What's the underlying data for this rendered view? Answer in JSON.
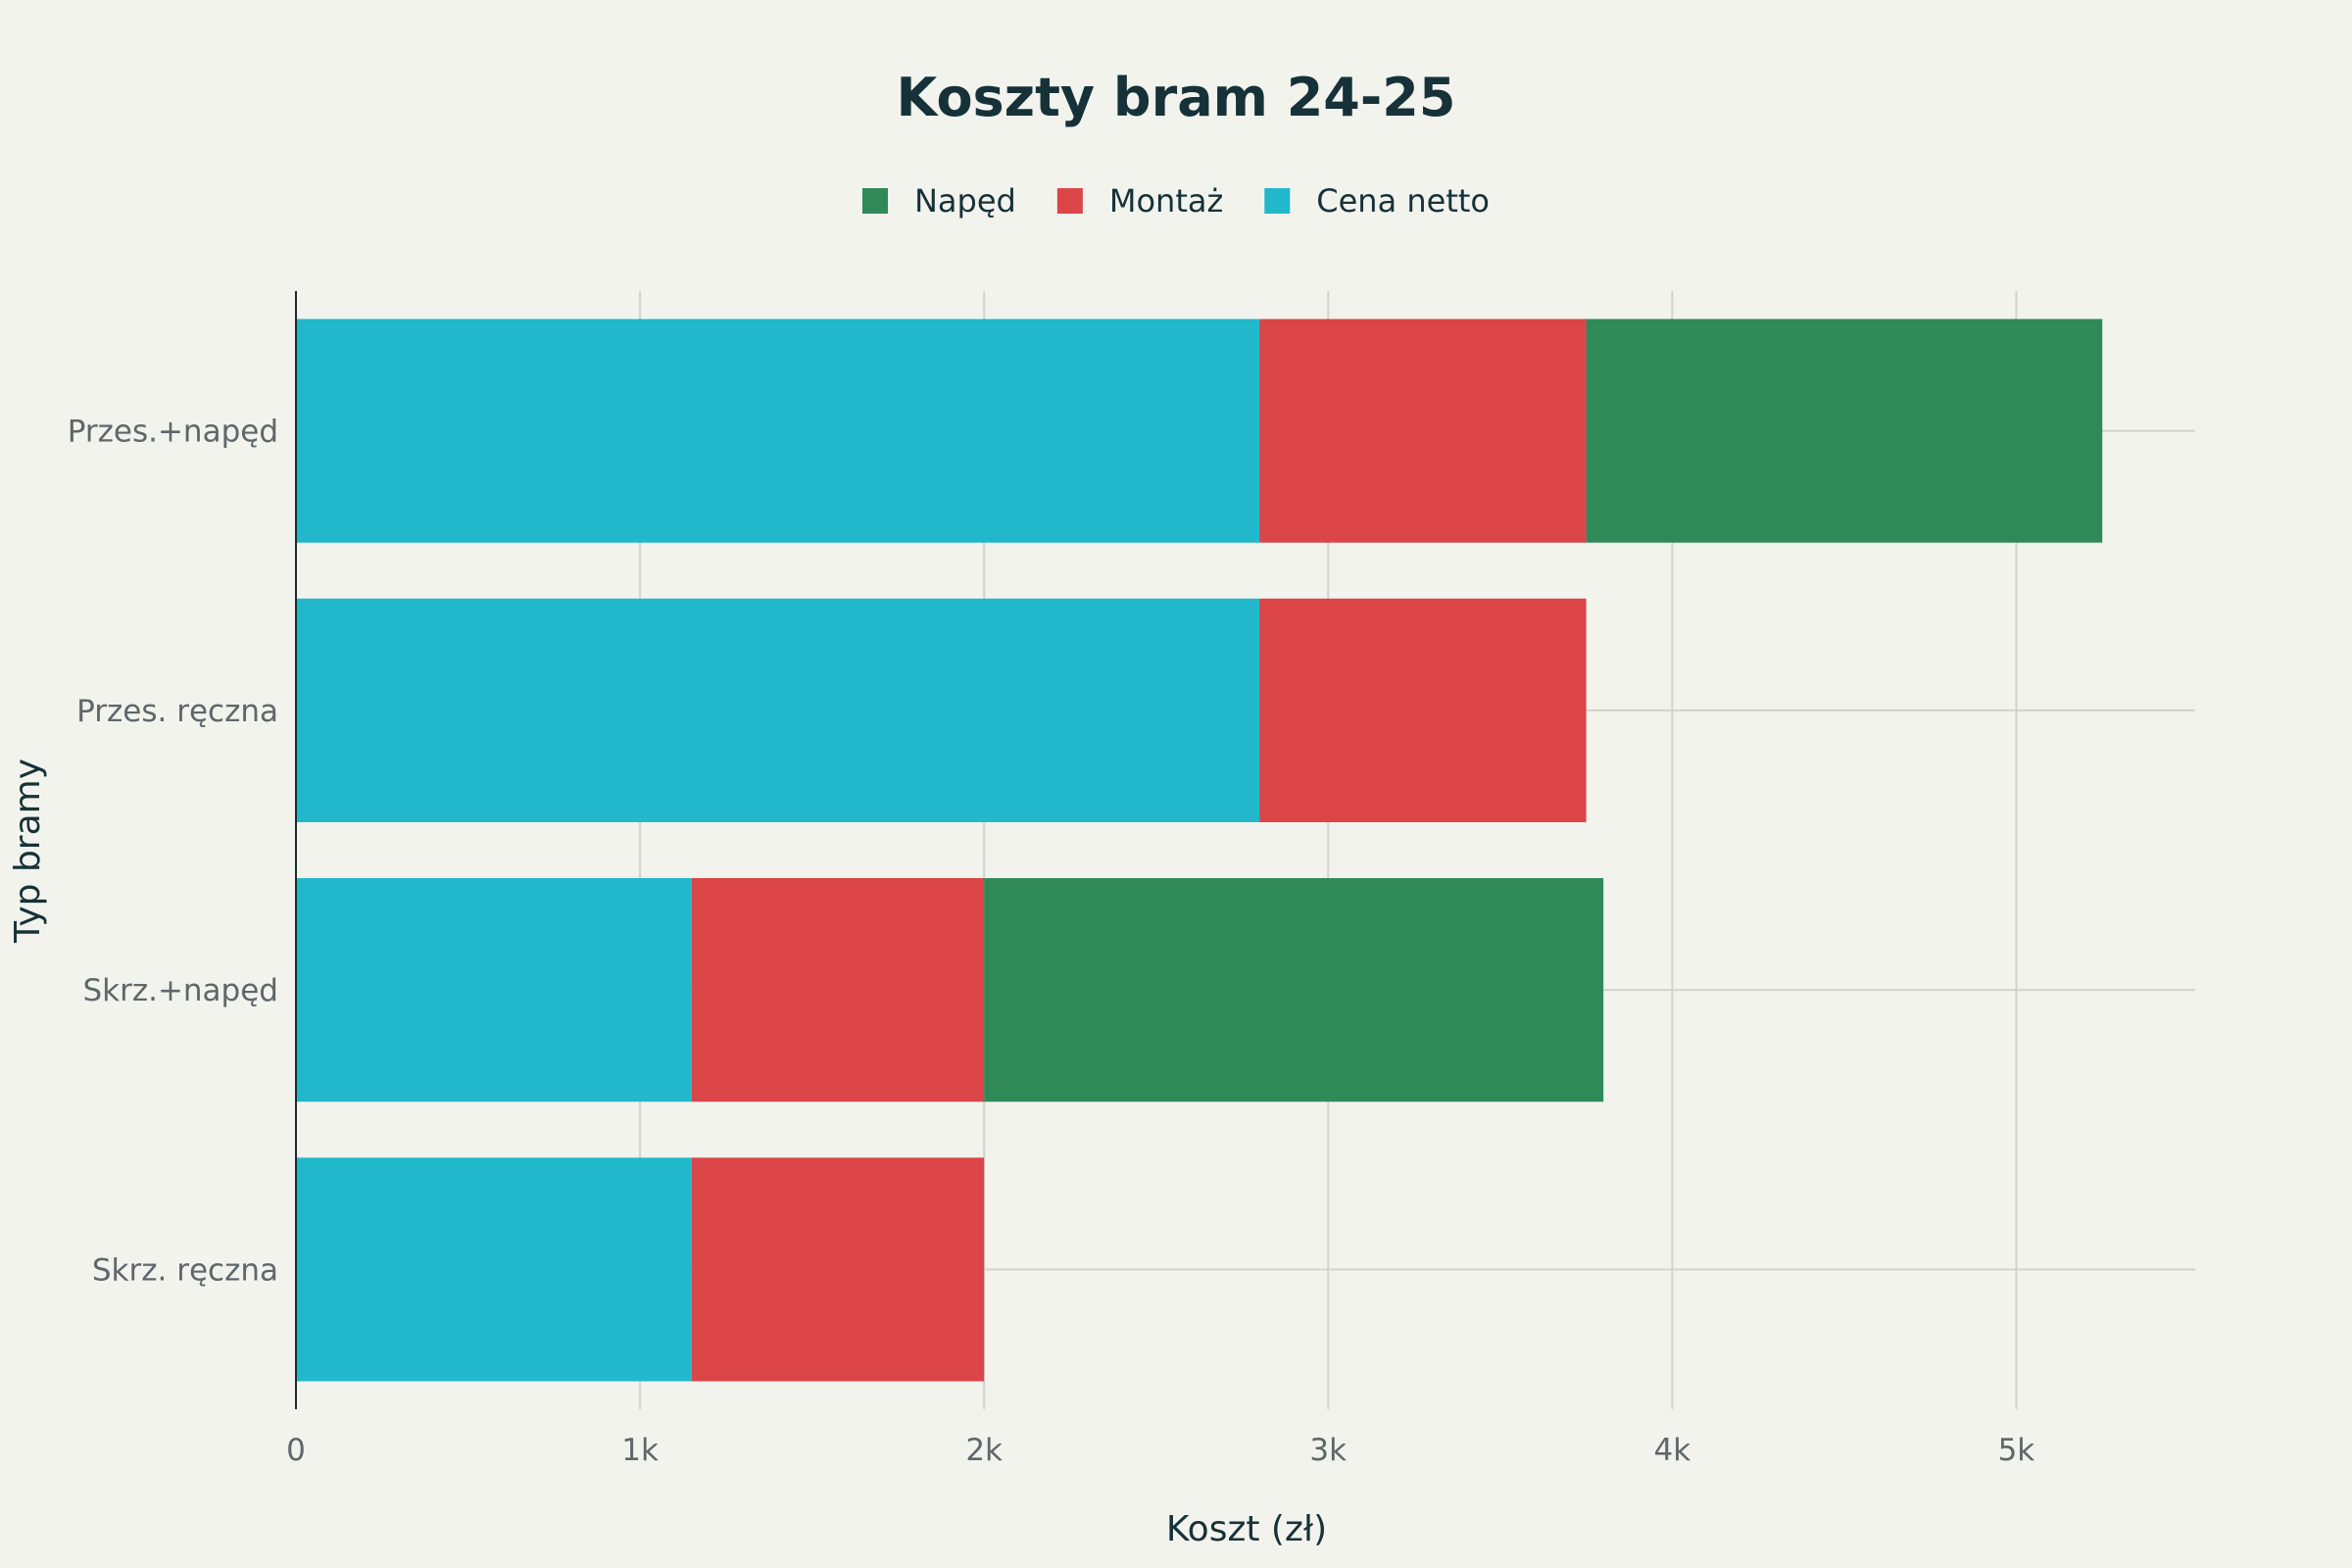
{
  "chart_data": {
    "type": "bar",
    "orientation": "horizontal",
    "stacked": true,
    "title": "Koszty bram 24-25",
    "xlabel": "Koszt (zł)",
    "ylabel": "Typ bramy",
    "xlim": [
      0,
      5520
    ],
    "x_ticks": [
      {
        "value": 0,
        "label": "0"
      },
      {
        "value": 1000,
        "label": "1k"
      },
      {
        "value": 2000,
        "label": "2k"
      },
      {
        "value": 3000,
        "label": "3k"
      },
      {
        "value": 4000,
        "label": "4k"
      },
      {
        "value": 5000,
        "label": "5k"
      }
    ],
    "grid": true,
    "legend_position": "top-center",
    "legend_order": [
      "Napęd",
      "Montaż",
      "Cena netto"
    ],
    "categories": [
      "Przes.+napęd",
      "Przes. ręczna",
      "Skrz.+napęd",
      "Skrz. ręczna"
    ],
    "series": [
      {
        "name": "Cena netto",
        "color": "#21B8CC",
        "values": [
          2800,
          2800,
          1150,
          1150
        ]
      },
      {
        "name": "Montaż",
        "color": "#DB4548",
        "values": [
          950,
          950,
          850,
          850
        ]
      },
      {
        "name": "Napęd",
        "color": "#2F8A58",
        "values": [
          1500,
          0,
          1800,
          0
        ]
      }
    ]
  }
}
